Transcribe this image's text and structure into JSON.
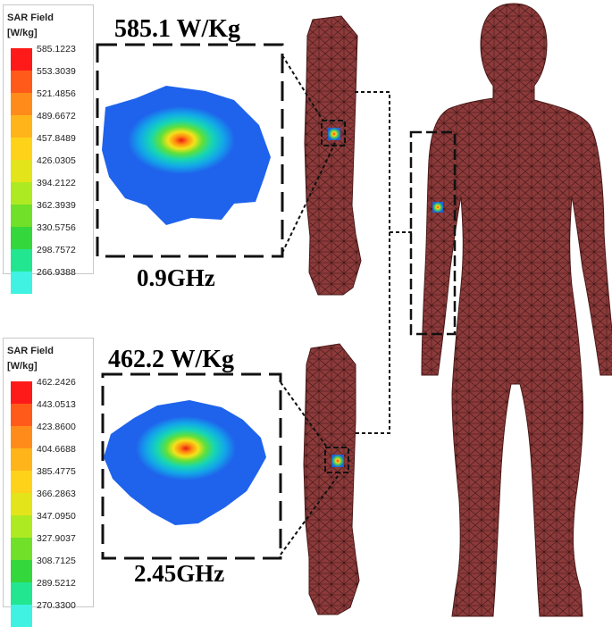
{
  "legends": [
    {
      "title": "SAR Field",
      "unit": "[W/kg]",
      "levels": [
        "585.1223",
        "553.3039",
        "521.4856",
        "489.6672",
        "457.8489",
        "426.0305",
        "394.2122",
        "362.3939",
        "330.5756",
        "298.7572",
        "266.9388"
      ]
    },
    {
      "title": "SAR Field",
      "unit": "[W/kg]",
      "levels": [
        "462.2426",
        "443.0513",
        "423.8600",
        "404.6688",
        "385.4775",
        "366.2863",
        "347.0950",
        "327.9037",
        "308.7125",
        "289.5212",
        "270.3300"
      ]
    }
  ],
  "colorscale": [
    "#ff1a1a",
    "#ff5a1a",
    "#ff8c1a",
    "#ffb41a",
    "#ffd21a",
    "#e4e41a",
    "#aeea22",
    "#70e028",
    "#34d83c",
    "#22e690",
    "#40f2e2"
  ],
  "panels": [
    {
      "peak_label": "585.1 W/Kg",
      "frequency": "0.9GHz"
    },
    {
      "peak_label": "462.2 W/Kg",
      "frequency": "2.45GHz"
    }
  ]
}
